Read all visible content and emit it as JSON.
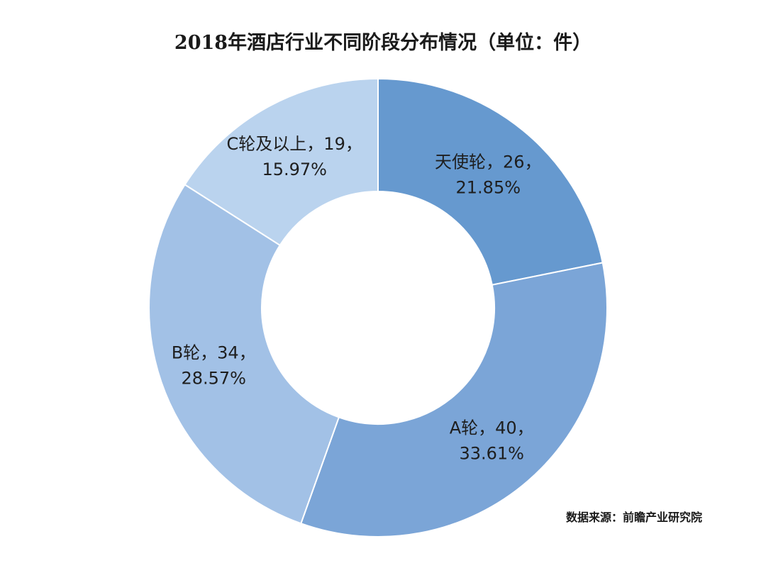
{
  "chart_data": {
    "type": "pie",
    "variant": "donut",
    "title": "2018年酒店行业不同阶段分布情况（单位：件）",
    "source": "数据来源：前瞻产业研究院",
    "categories": [
      "天使轮",
      "A轮",
      "B轮",
      "C轮及以上"
    ],
    "values": [
      26,
      40,
      34,
      19
    ],
    "percent_labels": [
      "21.85%",
      "33.61%",
      "28.57%",
      "15.97%"
    ],
    "labels_line1": [
      "天使轮，26，",
      "A轮，40，",
      "B轮，34，",
      "C轮及以上，19，"
    ],
    "colors": [
      "#6699cf",
      "#7ba5d7",
      "#a2c1e6",
      "#bad3ee"
    ]
  }
}
